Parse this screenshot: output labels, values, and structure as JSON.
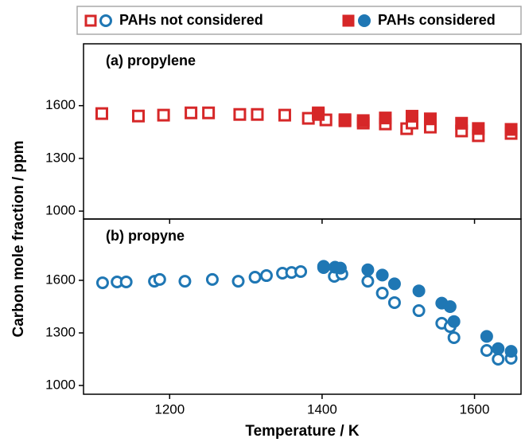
{
  "chart_data": [
    {
      "type": "scatter",
      "title": "(a) propylene",
      "ylabel": "Carbon mole fraction / ppm",
      "xlim": [
        1087,
        1661
      ],
      "ylim": [
        955,
        1952
      ],
      "yticks": [
        1000,
        1300,
        1600
      ],
      "series": [
        {
          "name": "PAHs not considered",
          "color": "#d62728",
          "marker": "square",
          "filled": false,
          "x": [
            1111,
            1159,
            1192,
            1228,
            1251,
            1292,
            1315,
            1351,
            1382,
            1395,
            1405,
            1430,
            1454,
            1483,
            1511,
            1518,
            1542,
            1583,
            1605,
            1648
          ],
          "values": [
            1555,
            1541,
            1546,
            1559,
            1559,
            1550,
            1550,
            1546,
            1528,
            1559,
            1519,
            1514,
            1501,
            1496,
            1469,
            1501,
            1478,
            1456,
            1429,
            1442
          ]
        },
        {
          "name": "PAHs considered",
          "color": "#d62728",
          "marker": "square",
          "filled": true,
          "x": [
            1395,
            1430,
            1454,
            1483,
            1518,
            1542,
            1583,
            1605,
            1648
          ],
          "values": [
            1550,
            1520,
            1515,
            1530,
            1540,
            1525,
            1500,
            1470,
            1465
          ]
        }
      ]
    },
    {
      "type": "scatter",
      "title": "(b) propyne",
      "xlabel": "Temperature / K",
      "xlim": [
        1087,
        1661
      ],
      "ylim": [
        950,
        1950
      ],
      "xticks": [
        1200,
        1400,
        1600
      ],
      "yticks": [
        1000,
        1300,
        1600
      ],
      "series": [
        {
          "color": "#1f77b4",
          "marker": "circle",
          "filled": false,
          "x": [
            1112,
            1131,
            1143,
            1180,
            1187,
            1220,
            1256,
            1290,
            1312,
            1327,
            1348,
            1360,
            1372,
            1402,
            1416,
            1426,
            1460,
            1479,
            1495,
            1527,
            1557,
            1568,
            1573,
            1616,
            1631,
            1648
          ],
          "values": [
            1586,
            1591,
            1591,
            1595,
            1605,
            1595,
            1605,
            1595,
            1618,
            1627,
            1641,
            1645,
            1650,
            1673,
            1623,
            1636,
            1595,
            1527,
            1473,
            1427,
            1355,
            1336,
            1273,
            1200,
            1150,
            1155
          ]
        },
        {
          "color": "#1f77b4",
          "marker": "circle",
          "filled": true,
          "x": [
            1402,
            1417,
            1424,
            1460,
            1479,
            1495,
            1527,
            1557,
            1568,
            1573,
            1616,
            1631,
            1648
          ],
          "values": [
            1680,
            1675,
            1670,
            1660,
            1630,
            1580,
            1540,
            1470,
            1450,
            1365,
            1280,
            1210,
            1195
          ]
        }
      ]
    }
  ]
}
